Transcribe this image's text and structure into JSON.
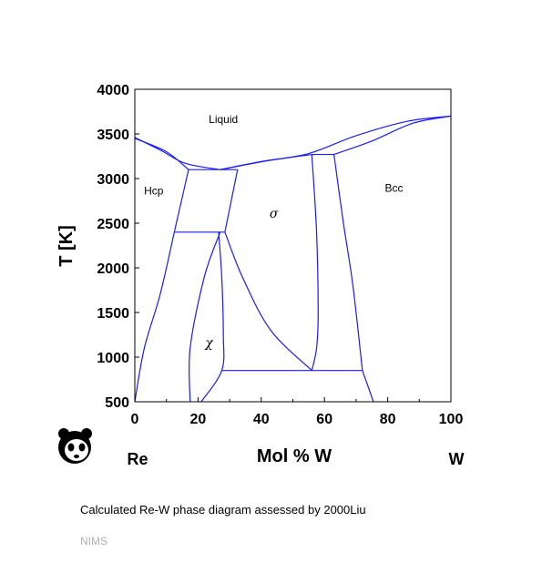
{
  "chart_data": {
    "type": "line",
    "xlabel": "Mol % W",
    "ylabel": "T [K]",
    "xlim": [
      0,
      100
    ],
    "ylim": [
      500,
      4000
    ],
    "x_ticks": [
      0,
      20,
      40,
      60,
      80,
      100
    ],
    "y_ticks": [
      500,
      1000,
      1500,
      2000,
      2500,
      3000,
      3500,
      4000
    ],
    "end_labels": {
      "left": "Re",
      "right": "W"
    },
    "line_color": "#1a1aff",
    "phase_labels": [
      {
        "text": "Liquid",
        "x": 28,
        "y": 3620
      },
      {
        "text": "Hcp",
        "x": 6,
        "y": 2820
      },
      {
        "text": "σ",
        "x": 44,
        "y": 2560
      },
      {
        "text": "Bcc",
        "x": 82,
        "y": 2850
      },
      {
        "text": "χ",
        "x": 23.5,
        "y": 1110
      }
    ],
    "curves": [
      {
        "points": [
          [
            0,
            3460
          ],
          [
            8,
            3320
          ],
          [
            16,
            3170
          ],
          [
            27,
            3100
          ]
        ]
      },
      {
        "points": [
          [
            0,
            3450
          ],
          [
            10,
            3300
          ],
          [
            17,
            3100
          ]
        ]
      },
      {
        "points": [
          [
            27,
            3100
          ],
          [
            40,
            3190
          ],
          [
            55,
            3280
          ],
          [
            70,
            3480
          ],
          [
            86,
            3640
          ],
          [
            100,
            3700
          ]
        ]
      },
      {
        "points": [
          [
            27,
            3100
          ],
          [
            42,
            3200
          ],
          [
            56,
            3270
          ]
        ]
      },
      {
        "points": [
          [
            63,
            3270
          ],
          [
            75,
            3420
          ],
          [
            88,
            3620
          ],
          [
            100,
            3700
          ]
        ]
      },
      {
        "points": [
          [
            17,
            3100
          ],
          [
            32.5,
            3100
          ]
        ]
      },
      {
        "points": [
          [
            56,
            3270
          ],
          [
            63,
            3270
          ]
        ]
      },
      {
        "points": [
          [
            17,
            3100
          ],
          [
            12.5,
            2400
          ]
        ]
      },
      {
        "points": [
          [
            32.5,
            3100
          ],
          [
            28.5,
            2400
          ]
        ]
      },
      {
        "points": [
          [
            12.5,
            2400
          ],
          [
            28.5,
            2400
          ]
        ]
      },
      {
        "points": [
          [
            12.5,
            2400
          ],
          [
            8,
            1700
          ],
          [
            3,
            1100
          ],
          [
            0,
            500
          ]
        ]
      },
      {
        "points": [
          [
            27,
            2400
          ],
          [
            22,
            1900
          ],
          [
            17.5,
            1100
          ],
          [
            17.5,
            500
          ]
        ]
      },
      {
        "points": [
          [
            26.5,
            2400
          ],
          [
            27.5,
            1900
          ],
          [
            28,
            1250
          ],
          [
            27.5,
            850
          ],
          [
            21,
            500
          ]
        ]
      },
      {
        "points": [
          [
            28.5,
            2400
          ],
          [
            34,
            1900
          ],
          [
            43,
            1300
          ],
          [
            56,
            850
          ]
        ]
      },
      {
        "points": [
          [
            56,
            3270
          ],
          [
            57.5,
            2400
          ],
          [
            58,
            1500
          ],
          [
            57.5,
            1100
          ],
          [
            56,
            850
          ]
        ]
      },
      {
        "points": [
          [
            63,
            3270
          ],
          [
            66,
            2500
          ],
          [
            69,
            1800
          ],
          [
            72,
            850
          ]
        ]
      },
      {
        "points": [
          [
            27.5,
            850
          ],
          [
            72,
            850
          ]
        ]
      },
      {
        "points": [
          [
            72,
            850
          ],
          [
            75.5,
            500
          ]
        ]
      }
    ]
  },
  "caption": "Calculated Re-W phase diagram assessed by 2000Liu",
  "source": "NIMS",
  "logo": {
    "icon": "panda-icon"
  }
}
